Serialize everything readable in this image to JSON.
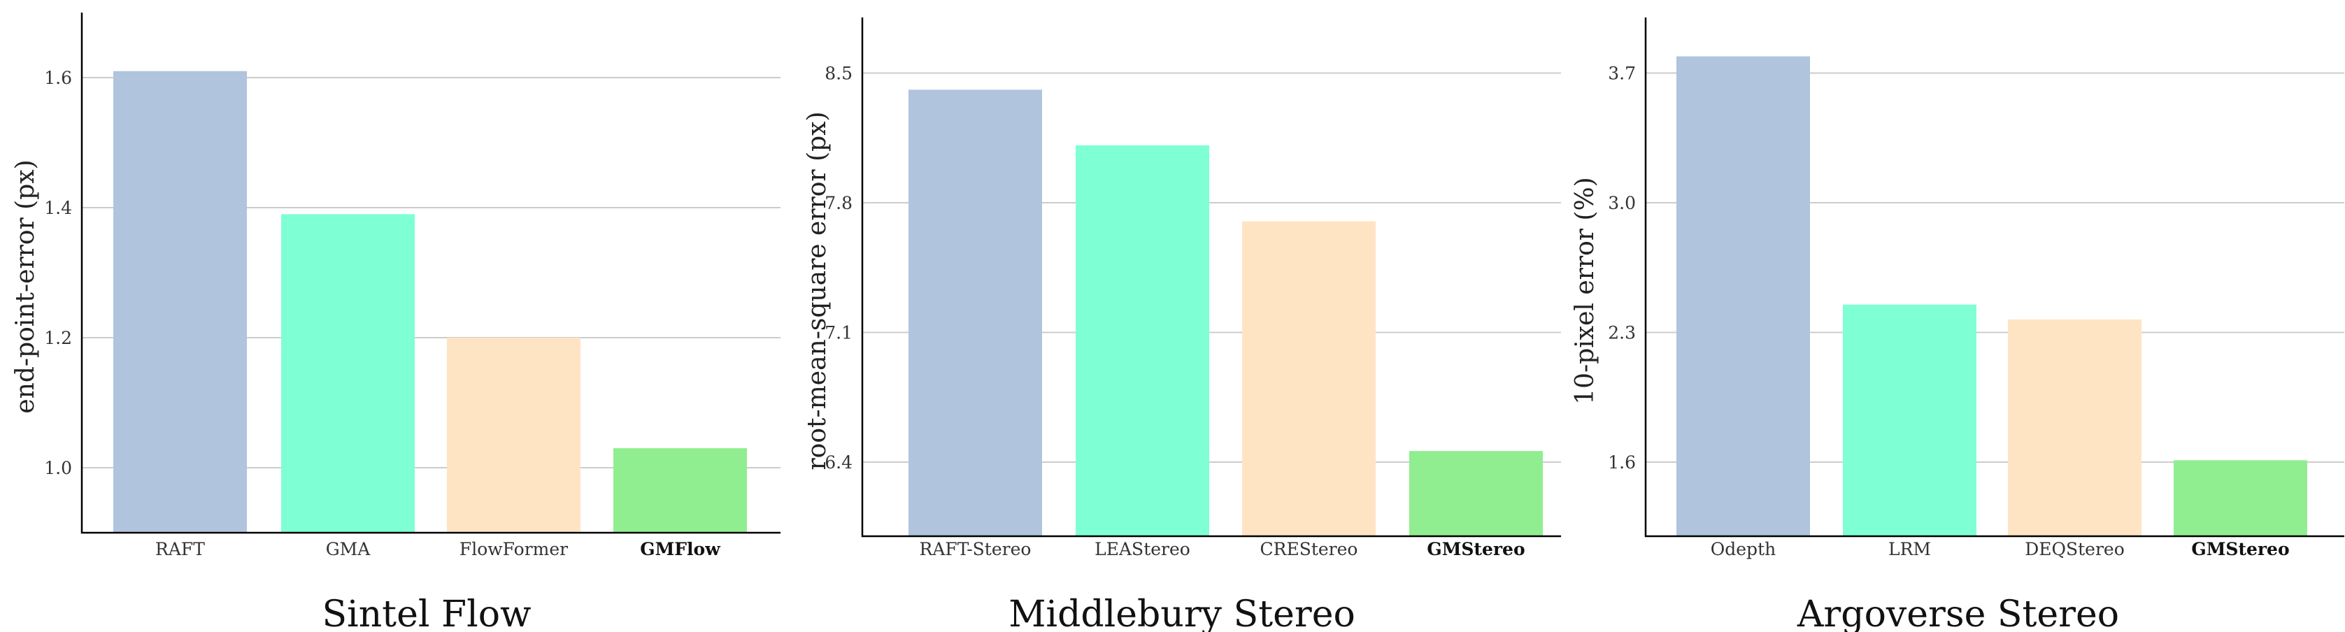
{
  "colors": [
    "#b0c4de",
    "#7fffd4",
    "#ffe4c4",
    "#90ee90"
  ],
  "chart_data": [
    {
      "type": "bar",
      "title": "Sintel Flow",
      "ylabel": "end-point-error (px)",
      "xlabel": "",
      "categories": [
        "RAFT",
        "GMA",
        "FlowFormer",
        "GMFlow"
      ],
      "bold_categories": [
        "GMFlow"
      ],
      "values": [
        1.61,
        1.39,
        1.2,
        1.03
      ],
      "ylim": [
        0.9,
        1.7
      ],
      "yticks": [
        "1.0",
        "1.2",
        "1.4",
        "1.6"
      ],
      "grid": "horizontal"
    },
    {
      "type": "bar",
      "title": "Middlebury Stereo",
      "ylabel": "root-mean-square error (px)",
      "xlabel": "",
      "categories": [
        "RAFT-Stereo",
        "LEAStereo",
        "CREStereo",
        "GMStereo"
      ],
      "bold_categories": [
        "GMStereo"
      ],
      "values": [
        8.41,
        8.11,
        7.7,
        6.46
      ],
      "ylim": [
        6.0,
        8.8
      ],
      "yticks": [
        "6.4",
        "7.1",
        "7.8",
        "8.5"
      ],
      "grid": "horizontal"
    },
    {
      "type": "bar",
      "title": "Argoverse Stereo",
      "ylabel": "10-pixel error (%)",
      "xlabel": "",
      "categories": [
        "Odepth",
        "LRM",
        "DEQStereo",
        "GMStereo"
      ],
      "bold_categories": [
        "GMStereo"
      ],
      "values": [
        3.79,
        2.45,
        2.37,
        1.61
      ],
      "ylim": [
        1.2,
        4.0
      ],
      "yticks": [
        "1.6",
        "2.3",
        "3.0",
        "3.7"
      ],
      "grid": "horizontal"
    }
  ]
}
